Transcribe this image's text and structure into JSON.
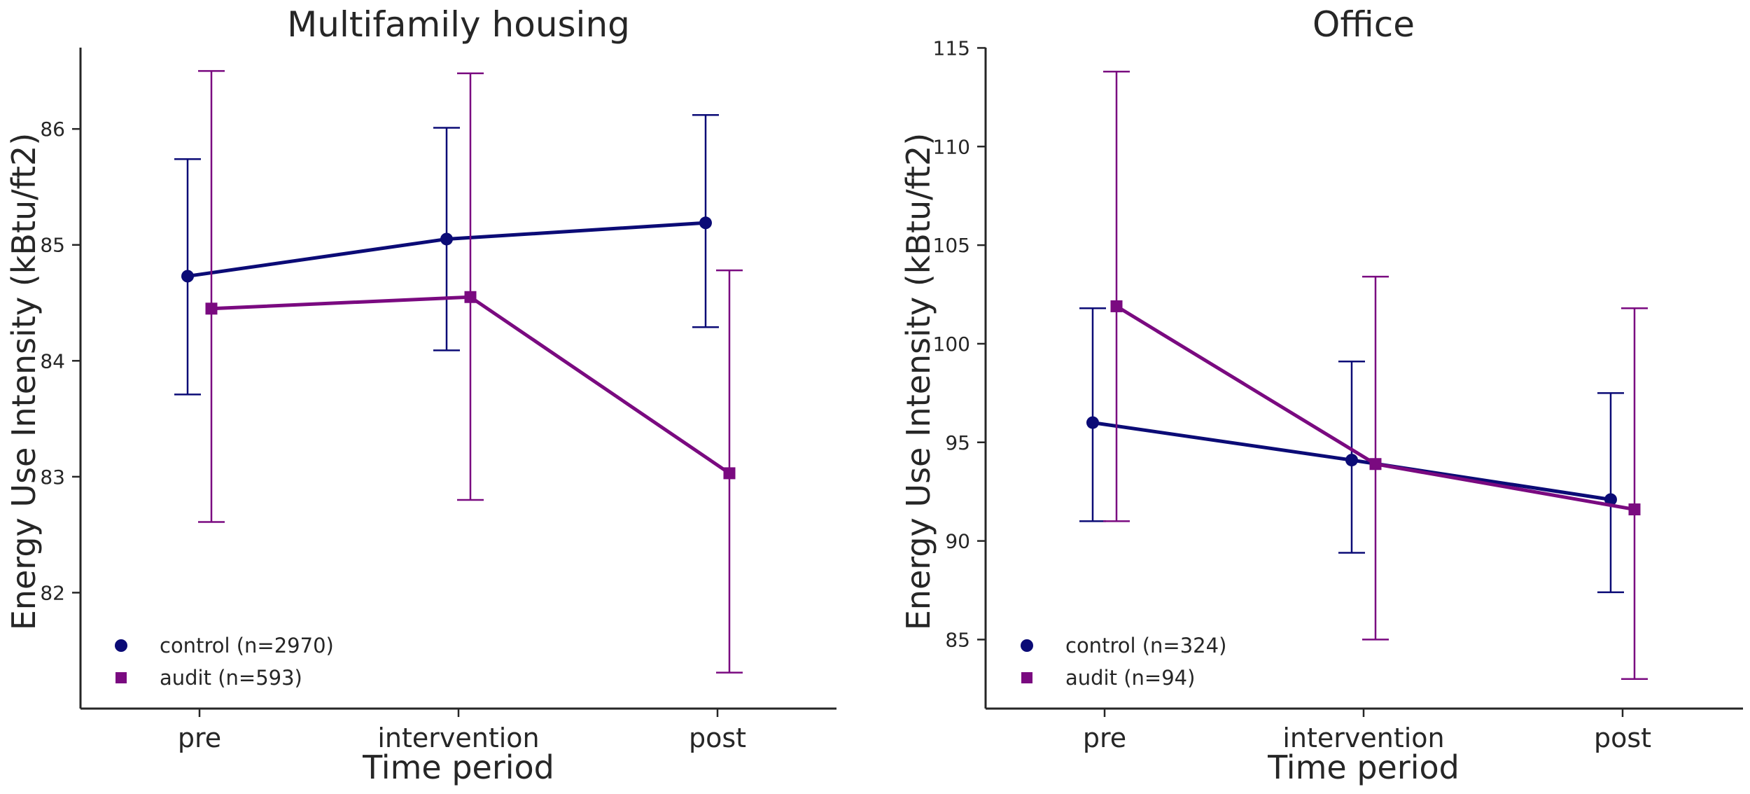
{
  "colors": {
    "control": "#0b0b76",
    "audit": "#7a0a80",
    "axis": "#262626"
  },
  "chart_data": [
    {
      "type": "line",
      "title": "Multifamily housing",
      "xlabel": "Time period",
      "ylabel": "Energy Use Intensity (kBtu/ft2)",
      "categories": [
        "pre",
        "intervention",
        "post"
      ],
      "ylim": [
        81,
        86.75
      ],
      "yticks": [
        82,
        83,
        84,
        85,
        86
      ],
      "series": [
        {
          "name": "control (n=2970)",
          "key": "control",
          "marker": "circle",
          "values": [
            84.73,
            85.05,
            85.19
          ],
          "ci_low": [
            83.71,
            84.09,
            84.29
          ],
          "ci_high": [
            85.74,
            86.01,
            86.12
          ]
        },
        {
          "name": "audit (n=593)",
          "key": "audit",
          "marker": "square",
          "values": [
            84.45,
            84.55,
            83.03
          ],
          "ci_low": [
            82.61,
            82.8,
            81.31
          ],
          "ci_high": [
            86.5,
            86.48,
            84.78
          ]
        }
      ]
    },
    {
      "type": "line",
      "title": "Office",
      "xlabel": "Time period",
      "ylabel": "Energy Use Intensity (kBtu/ft2)",
      "categories": [
        "pre",
        "intervention",
        "post"
      ],
      "ylim": [
        81.5,
        115.3
      ],
      "yticks": [
        85,
        90,
        95,
        100,
        105,
        110,
        115
      ],
      "series": [
        {
          "name": "control (n=324)",
          "key": "control",
          "marker": "circle",
          "values": [
            96.0,
            94.1,
            92.1
          ],
          "ci_low": [
            91.0,
            89.4,
            87.4
          ],
          "ci_high": [
            101.8,
            99.1,
            97.5
          ]
        },
        {
          "name": "audit (n=94)",
          "key": "audit",
          "marker": "square",
          "values": [
            101.9,
            93.9,
            91.6
          ],
          "ci_low": [
            91.0,
            85.0,
            83.0
          ],
          "ci_high": [
            113.8,
            103.4,
            101.8
          ]
        }
      ]
    }
  ]
}
